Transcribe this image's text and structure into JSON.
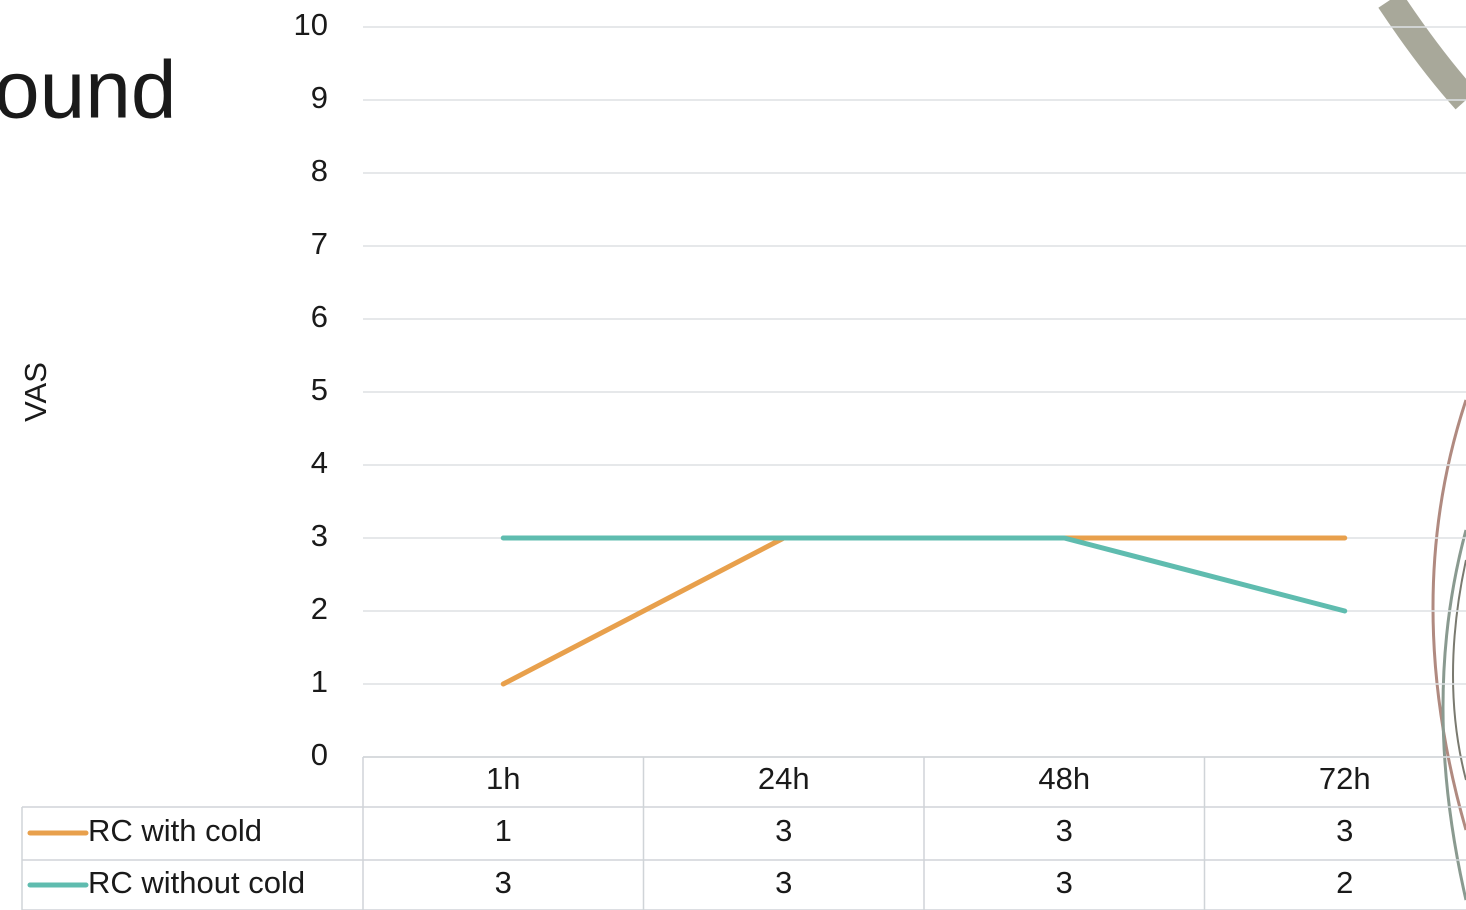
{
  "chart_data": {
    "type": "line",
    "title": "ound",
    "y_label": "VAS",
    "categories": [
      "1h",
      "24h",
      "48h",
      "72h"
    ],
    "series": [
      {
        "name": "RC with cold",
        "color": "#e8a04c",
        "values": [
          1,
          3,
          3,
          3
        ]
      },
      {
        "name": "RC without cold",
        "color": "#5fbcaf",
        "values": [
          3,
          3,
          3,
          2
        ]
      }
    ],
    "ylim": [
      0,
      10
    ],
    "yticks": [
      0,
      1,
      2,
      3,
      4,
      5,
      6,
      7,
      8,
      9,
      10
    ],
    "grid": true,
    "data_table": true
  }
}
